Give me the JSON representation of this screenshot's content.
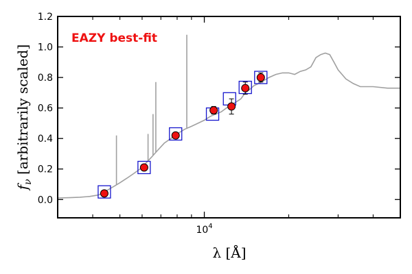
{
  "chart_data": {
    "type": "scatter",
    "annotation": "EAZY best-fit",
    "xlabel": "λ [Å]",
    "ylabel_f": "f",
    "ylabel_sub": "ν",
    "ylabel_rest": " [arbitrarily scaled]",
    "x_scale": "log",
    "xlim": [
      3000,
      50000
    ],
    "ylim": [
      -0.12,
      1.2
    ],
    "grid": false,
    "y_ticks": [
      {
        "value": 0.0,
        "label": "0.0"
      },
      {
        "value": 0.2,
        "label": "0.2"
      },
      {
        "value": 0.4,
        "label": "0.4"
      },
      {
        "value": 0.6,
        "label": "0.6"
      },
      {
        "value": 0.8,
        "label": "0.8"
      },
      {
        "value": 1.0,
        "label": "1.0"
      },
      {
        "value": 1.2,
        "label": "1.2"
      }
    ],
    "x_major_ticks": [
      {
        "value": 10000,
        "label_base": "10",
        "label_exp": "4"
      }
    ],
    "x_minor_ticks": [
      4000,
      5000,
      6000,
      7000,
      8000,
      9000,
      20000,
      30000,
      40000
    ],
    "observed": [
      {
        "x": 4400,
        "y": 0.04,
        "err": 0.015
      },
      {
        "x": 6100,
        "y": 0.21,
        "err": 0.015
      },
      {
        "x": 7900,
        "y": 0.42,
        "err": 0.015
      },
      {
        "x": 10800,
        "y": 0.585,
        "err": 0.025
      },
      {
        "x": 12500,
        "y": 0.61,
        "err": 0.05
      },
      {
        "x": 14000,
        "y": 0.73,
        "err": 0.04
      },
      {
        "x": 15900,
        "y": 0.8,
        "err": 0.03
      }
    ],
    "model_photometry": [
      {
        "x": 4400,
        "y": 0.05
      },
      {
        "x": 6100,
        "y": 0.21
      },
      {
        "x": 7900,
        "y": 0.43
      },
      {
        "x": 10700,
        "y": 0.56
      },
      {
        "x": 12300,
        "y": 0.66
      },
      {
        "x": 14000,
        "y": 0.735
      },
      {
        "x": 15900,
        "y": 0.8
      }
    ],
    "template_sed": [
      [
        3000,
        0.01
      ],
      [
        3300,
        0.012
      ],
      [
        3600,
        0.015
      ],
      [
        3900,
        0.02
      ],
      [
        4200,
        0.03
      ],
      [
        4500,
        0.06
      ],
      [
        4800,
        0.09
      ],
      [
        5000,
        0.11
      ],
      [
        5300,
        0.14
      ],
      [
        5600,
        0.17
      ],
      [
        5900,
        0.2
      ],
      [
        6200,
        0.24
      ],
      [
        6500,
        0.28
      ],
      [
        6800,
        0.32
      ],
      [
        7200,
        0.37
      ],
      [
        7600,
        0.4
      ],
      [
        8000,
        0.43
      ],
      [
        8500,
        0.46
      ],
      [
        9000,
        0.48
      ],
      [
        9500,
        0.5
      ],
      [
        10000,
        0.52
      ],
      [
        10500,
        0.545
      ],
      [
        11000,
        0.56
      ],
      [
        11500,
        0.575
      ],
      [
        12000,
        0.6
      ],
      [
        12500,
        0.62
      ],
      [
        13000,
        0.64
      ],
      [
        13500,
        0.66
      ],
      [
        14000,
        0.7
      ],
      [
        14500,
        0.72
      ],
      [
        15000,
        0.745
      ],
      [
        16000,
        0.77
      ],
      [
        17000,
        0.8
      ],
      [
        18000,
        0.82
      ],
      [
        19000,
        0.83
      ],
      [
        20000,
        0.83
      ],
      [
        21000,
        0.82
      ],
      [
        22000,
        0.84
      ],
      [
        23000,
        0.85
      ],
      [
        24000,
        0.87
      ],
      [
        25000,
        0.93
      ],
      [
        26000,
        0.95
      ],
      [
        27000,
        0.96
      ],
      [
        28000,
        0.95
      ],
      [
        29000,
        0.9
      ],
      [
        30000,
        0.85
      ],
      [
        32000,
        0.79
      ],
      [
        34000,
        0.76
      ],
      [
        36000,
        0.74
      ],
      [
        40000,
        0.74
      ],
      [
        45000,
        0.73
      ],
      [
        50000,
        0.73
      ]
    ],
    "emission_lines": [
      {
        "x": 4861,
        "peak": 0.42
      },
      {
        "x": 6563,
        "peak": 0.56
      },
      {
        "x": 6716,
        "peak": 0.77
      },
      {
        "x": 6300,
        "peak": 0.43
      },
      {
        "x": 8660,
        "peak": 1.08
      }
    ],
    "colors": {
      "template": "#a0a0a0",
      "point_fill": "#ee1111",
      "model_box": "#1515cc",
      "annotation": "#ee1111",
      "axis": "#000000"
    }
  }
}
